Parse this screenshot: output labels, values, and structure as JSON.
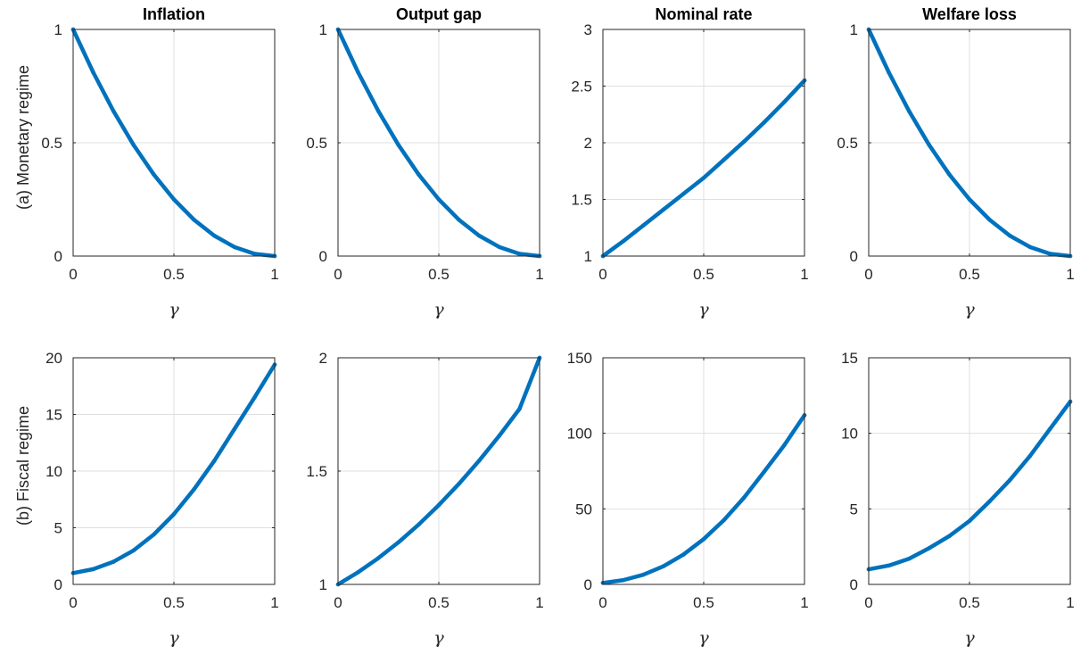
{
  "figure": {
    "row_labels": [
      "(a) Monetary regime",
      "(b) Fiscal regime"
    ],
    "col_titles": [
      "Inflation",
      "Output gap",
      "Nominal rate",
      "Welfare loss"
    ]
  },
  "chart_data": [
    {
      "type": "line",
      "row": 0,
      "col": 0,
      "title": "Inflation",
      "xlabel": "γ",
      "ylabel": "(a) Monetary regime",
      "xlim": [
        0,
        1
      ],
      "ylim": [
        0,
        1
      ],
      "xticks": [
        0,
        0.5,
        1
      ],
      "xticklabels": [
        "0",
        "0.5",
        "1"
      ],
      "yticks": [
        0,
        0.5,
        1
      ],
      "yticklabels": [
        "0",
        "0.5",
        "1"
      ],
      "grid": true,
      "color": "#0072BD",
      "x": [
        0,
        0.1,
        0.2,
        0.3,
        0.4,
        0.5,
        0.6,
        0.7,
        0.8,
        0.9,
        1.0
      ],
      "y": [
        1.0,
        0.81,
        0.64,
        0.49,
        0.36,
        0.25,
        0.16,
        0.09,
        0.04,
        0.01,
        0.0
      ]
    },
    {
      "type": "line",
      "row": 0,
      "col": 1,
      "title": "Output gap",
      "xlabel": "γ",
      "ylabel": "",
      "xlim": [
        0,
        1
      ],
      "ylim": [
        0,
        1
      ],
      "xticks": [
        0,
        0.5,
        1
      ],
      "xticklabels": [
        "0",
        "0.5",
        "1"
      ],
      "yticks": [
        0,
        0.5,
        1
      ],
      "yticklabels": [
        "0",
        "0.5",
        "1"
      ],
      "grid": true,
      "color": "#0072BD",
      "x": [
        0,
        0.1,
        0.2,
        0.3,
        0.4,
        0.5,
        0.6,
        0.7,
        0.8,
        0.9,
        1.0
      ],
      "y": [
        1.0,
        0.81,
        0.64,
        0.49,
        0.36,
        0.25,
        0.16,
        0.09,
        0.04,
        0.01,
        0.0
      ]
    },
    {
      "type": "line",
      "row": 0,
      "col": 2,
      "title": "Nominal rate",
      "xlabel": "γ",
      "ylabel": "",
      "xlim": [
        0,
        1
      ],
      "ylim": [
        1,
        3
      ],
      "xticks": [
        0,
        0.5,
        1
      ],
      "xticklabels": [
        "0",
        "0.5",
        "1"
      ],
      "yticks": [
        1,
        1.5,
        2,
        2.5,
        3
      ],
      "yticklabels": [
        "1",
        "1.5",
        "2",
        "2.5",
        "3"
      ],
      "grid": true,
      "color": "#0072BD",
      "x": [
        0,
        0.1,
        0.2,
        0.3,
        0.4,
        0.5,
        0.6,
        0.7,
        0.8,
        0.9,
        1.0
      ],
      "y": [
        1.0,
        1.13,
        1.27,
        1.41,
        1.55,
        1.69,
        1.85,
        2.01,
        2.18,
        2.36,
        2.55
      ]
    },
    {
      "type": "line",
      "row": 0,
      "col": 3,
      "title": "Welfare loss",
      "xlabel": "γ",
      "ylabel": "",
      "xlim": [
        0,
        1
      ],
      "ylim": [
        0,
        1
      ],
      "xticks": [
        0,
        0.5,
        1
      ],
      "xticklabels": [
        "0",
        "0.5",
        "1"
      ],
      "yticks": [
        0,
        0.5,
        1
      ],
      "yticklabels": [
        "0",
        "0.5",
        "1"
      ],
      "grid": true,
      "color": "#0072BD",
      "x": [
        0,
        0.1,
        0.2,
        0.3,
        0.4,
        0.5,
        0.6,
        0.7,
        0.8,
        0.9,
        1.0
      ],
      "y": [
        1.0,
        0.81,
        0.64,
        0.49,
        0.36,
        0.25,
        0.16,
        0.09,
        0.04,
        0.01,
        0.0
      ]
    },
    {
      "type": "line",
      "row": 1,
      "col": 0,
      "title": "",
      "xlabel": "γ",
      "ylabel": "(b) Fiscal regime",
      "xlim": [
        0,
        1
      ],
      "ylim": [
        0,
        20
      ],
      "xticks": [
        0,
        0.5,
        1
      ],
      "xticklabels": [
        "0",
        "0.5",
        "1"
      ],
      "yticks": [
        0,
        5,
        10,
        15,
        20
      ],
      "yticklabels": [
        "0",
        "5",
        "10",
        "15",
        "20"
      ],
      "grid": true,
      "color": "#0072BD",
      "x": [
        0,
        0.1,
        0.2,
        0.3,
        0.4,
        0.5,
        0.6,
        0.7,
        0.8,
        0.9,
        1.0
      ],
      "y": [
        1.0,
        1.35,
        2.0,
        3.0,
        4.4,
        6.2,
        8.4,
        10.9,
        13.7,
        16.5,
        19.4
      ]
    },
    {
      "type": "line",
      "row": 1,
      "col": 1,
      "title": "",
      "xlabel": "γ",
      "ylabel": "",
      "xlim": [
        0,
        1
      ],
      "ylim": [
        1,
        2
      ],
      "xticks": [
        0,
        0.5,
        1
      ],
      "xticklabels": [
        "0",
        "0.5",
        "1"
      ],
      "yticks": [
        1,
        1.5,
        2
      ],
      "yticklabels": [
        "1",
        "1.5",
        "2"
      ],
      "grid": true,
      "color": "#0072BD",
      "x": [
        0,
        0.1,
        0.2,
        0.3,
        0.4,
        0.5,
        0.6,
        0.7,
        0.8,
        0.9,
        1.0
      ],
      "y": [
        1.0,
        1.054,
        1.116,
        1.186,
        1.264,
        1.35,
        1.444,
        1.546,
        1.656,
        1.774,
        2.0
      ]
    },
    {
      "type": "line",
      "row": 1,
      "col": 2,
      "title": "",
      "xlabel": "γ",
      "ylabel": "",
      "xlim": [
        0,
        1
      ],
      "ylim": [
        0,
        150
      ],
      "xticks": [
        0,
        0.5,
        1
      ],
      "xticklabels": [
        "0",
        "0.5",
        "1"
      ],
      "yticks": [
        0,
        50,
        100,
        150
      ],
      "yticklabels": [
        "0",
        "50",
        "100",
        "150"
      ],
      "grid": true,
      "color": "#0072BD",
      "x": [
        0,
        0.1,
        0.2,
        0.3,
        0.4,
        0.5,
        0.6,
        0.7,
        0.8,
        0.9,
        1.0
      ],
      "y": [
        1.0,
        2.8,
        6.4,
        12.0,
        19.8,
        30.0,
        42.5,
        57.4,
        74.6,
        92.2,
        112.0
      ]
    },
    {
      "type": "line",
      "row": 1,
      "col": 3,
      "title": "",
      "xlabel": "γ",
      "ylabel": "",
      "xlim": [
        0,
        1
      ],
      "ylim": [
        0,
        15
      ],
      "xticks": [
        0,
        0.5,
        1
      ],
      "xticklabels": [
        "0",
        "0.5",
        "1"
      ],
      "yticks": [
        0,
        5,
        10,
        15
      ],
      "yticklabels": [
        "0",
        "5",
        "10",
        "15"
      ],
      "grid": true,
      "color": "#0072BD",
      "x": [
        0,
        0.1,
        0.2,
        0.3,
        0.4,
        0.5,
        0.6,
        0.7,
        0.8,
        0.9,
        1.0
      ],
      "y": [
        1.0,
        1.25,
        1.7,
        2.4,
        3.2,
        4.2,
        5.5,
        6.9,
        8.5,
        10.3,
        12.1
      ]
    }
  ]
}
